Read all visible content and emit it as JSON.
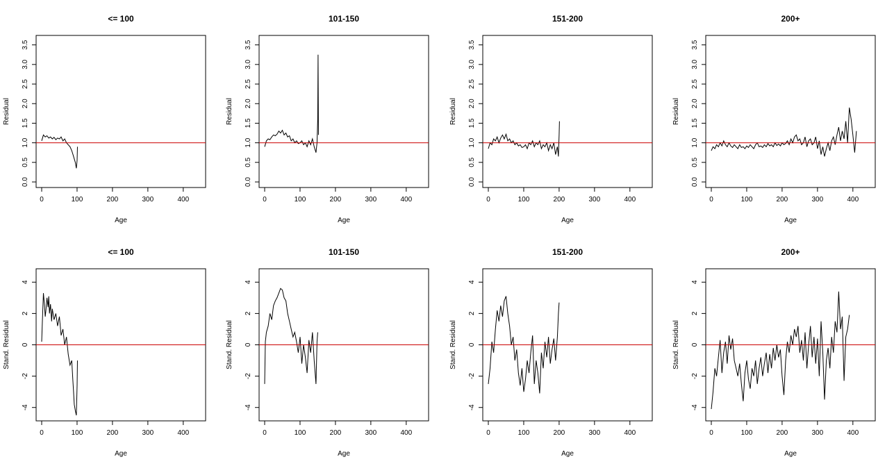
{
  "figure": {
    "reference_line_color": "#cc0000",
    "series_color": "#000000"
  },
  "chart_data": [
    {
      "type": "line",
      "title": "<= 100",
      "xlabel": "Age",
      "ylabel": "Residual",
      "xlim": [
        0,
        420
      ],
      "ylim": [
        0,
        3.6
      ],
      "xticks": [
        "0",
        "100",
        "200",
        "300",
        "400"
      ],
      "yticks": [
        "0.0",
        "0.5",
        "1.0",
        "1.5",
        "2.0",
        "2.5",
        "3.0",
        "3.5"
      ],
      "reference_line": 1,
      "series": [
        {
          "x": [
            0,
            5,
            10,
            15,
            20,
            25,
            30,
            35,
            40,
            45,
            50,
            55,
            60,
            65,
            70,
            75,
            80,
            85,
            90,
            95,
            98,
            100,
            101
          ],
          "y": [
            1.05,
            1.2,
            1.15,
            1.18,
            1.12,
            1.15,
            1.1,
            1.14,
            1.08,
            1.12,
            1.1,
            1.15,
            1.05,
            1.1,
            1.0,
            0.95,
            0.9,
            0.8,
            0.65,
            0.5,
            0.35,
            0.55,
            0.9
          ]
        }
      ]
    },
    {
      "type": "line",
      "title": "101-150",
      "xlabel": "Age",
      "ylabel": "Residual",
      "xlim": [
        0,
        420
      ],
      "ylim": [
        0,
        3.6
      ],
      "xticks": [
        "0",
        "100",
        "200",
        "300",
        "400"
      ],
      "yticks": [
        "0.0",
        "0.5",
        "1.0",
        "1.5",
        "2.0",
        "2.5",
        "3.0",
        "3.5"
      ],
      "reference_line": 1,
      "series": [
        {
          "x": [
            0,
            5,
            10,
            15,
            20,
            25,
            30,
            35,
            40,
            45,
            50,
            55,
            60,
            65,
            70,
            75,
            80,
            85,
            90,
            95,
            100,
            105,
            110,
            115,
            120,
            125,
            130,
            135,
            140,
            145,
            148,
            150,
            151,
            152
          ],
          "y": [
            0.9,
            1.05,
            1.1,
            1.08,
            1.15,
            1.2,
            1.18,
            1.22,
            1.3,
            1.25,
            1.32,
            1.2,
            1.25,
            1.15,
            1.18,
            1.05,
            1.1,
            1.0,
            1.05,
            0.98,
            1.0,
            1.05,
            0.95,
            1.0,
            0.9,
            1.05,
            0.95,
            1.1,
            0.9,
            0.75,
            1.0,
            1.6,
            3.25,
            1.2
          ]
        }
      ]
    },
    {
      "type": "line",
      "title": "151-200",
      "xlabel": "Age",
      "ylabel": "Residual",
      "xlim": [
        0,
        420
      ],
      "ylim": [
        0,
        3.6
      ],
      "xticks": [
        "0",
        "100",
        "200",
        "300",
        "400"
      ],
      "yticks": [
        "0.0",
        "0.5",
        "1.0",
        "1.5",
        "2.0",
        "2.5",
        "3.0",
        "3.5"
      ],
      "reference_line": 1,
      "series": [
        {
          "x": [
            0,
            5,
            10,
            15,
            20,
            25,
            30,
            35,
            40,
            45,
            50,
            55,
            60,
            65,
            70,
            75,
            80,
            85,
            90,
            95,
            100,
            105,
            110,
            115,
            120,
            125,
            130,
            135,
            140,
            145,
            150,
            155,
            160,
            165,
            170,
            175,
            180,
            185,
            190,
            195,
            198,
            200,
            201
          ],
          "y": [
            0.85,
            1.0,
            0.95,
            1.1,
            1.05,
            1.15,
            1.0,
            1.12,
            1.2,
            1.1,
            1.22,
            1.05,
            1.1,
            1.0,
            1.05,
            0.95,
            1.0,
            0.92,
            0.95,
            0.88,
            0.9,
            0.95,
            0.85,
            1.0,
            0.95,
            1.05,
            0.9,
            1.0,
            0.95,
            1.05,
            0.85,
            0.95,
            0.9,
            1.0,
            0.8,
            0.95,
            0.85,
            1.0,
            0.7,
            0.9,
            0.65,
            1.2,
            1.55
          ]
        }
      ]
    },
    {
      "type": "line",
      "title": "200+",
      "xlabel": "Age",
      "ylabel": "Residual",
      "xlim": [
        0,
        420
      ],
      "ylim": [
        0,
        3.6
      ],
      "xticks": [
        "0",
        "100",
        "200",
        "300",
        "400"
      ],
      "yticks": [
        "0.0",
        "0.5",
        "1.0",
        "1.5",
        "2.0",
        "2.5",
        "3.0",
        "3.5"
      ],
      "reference_line": 1,
      "series": [
        {
          "x": [
            0,
            5,
            10,
            15,
            20,
            25,
            30,
            35,
            40,
            45,
            50,
            55,
            60,
            65,
            70,
            75,
            80,
            85,
            90,
            95,
            100,
            105,
            110,
            115,
            120,
            125,
            130,
            135,
            140,
            145,
            150,
            155,
            160,
            165,
            170,
            175,
            180,
            185,
            190,
            195,
            200,
            205,
            210,
            215,
            220,
            225,
            230,
            235,
            240,
            245,
            250,
            255,
            260,
            265,
            270,
            275,
            280,
            285,
            290,
            295,
            300,
            305,
            310,
            315,
            320,
            325,
            330,
            335,
            340,
            345,
            350,
            355,
            360,
            365,
            370,
            375,
            380,
            385,
            390,
            395,
            400,
            405,
            410
          ],
          "y": [
            0.8,
            0.9,
            0.85,
            0.95,
            0.9,
            1.0,
            0.92,
            1.05,
            0.95,
            0.9,
            1.0,
            0.92,
            0.88,
            0.95,
            0.9,
            0.85,
            0.95,
            0.88,
            0.9,
            0.85,
            0.92,
            0.88,
            0.95,
            0.9,
            0.85,
            0.95,
            1.0,
            0.9,
            0.92,
            0.88,
            0.95,
            0.9,
            0.98,
            0.92,
            0.95,
            0.9,
            1.0,
            0.93,
            0.97,
            0.92,
            1.0,
            0.95,
            0.98,
            1.05,
            0.95,
            1.1,
            1.0,
            1.15,
            1.2,
            1.05,
            1.1,
            0.95,
            1.0,
            1.15,
            0.9,
            1.05,
            1.1,
            0.95,
            1.0,
            1.15,
            0.85,
            1.05,
            0.7,
            0.9,
            0.65,
            0.85,
            1.0,
            0.8,
            1.05,
            1.15,
            0.95,
            1.2,
            1.4,
            1.05,
            1.3,
            1.1,
            1.55,
            1.0,
            1.9,
            1.6,
            1.2,
            0.75,
            1.3
          ]
        }
      ]
    },
    {
      "type": "line",
      "title": "<= 100",
      "xlabel": "Age",
      "ylabel": "Stand. Residual",
      "xlim": [
        0,
        420
      ],
      "ylim": [
        -4.5,
        4.5
      ],
      "xticks": [
        "0",
        "100",
        "200",
        "300",
        "400"
      ],
      "yticks": [
        "-4",
        "-2",
        "0",
        "2",
        "4"
      ],
      "reference_line": 0,
      "series": [
        {
          "x": [
            0,
            2,
            5,
            8,
            10,
            12,
            15,
            18,
            20,
            22,
            25,
            28,
            30,
            35,
            40,
            45,
            50,
            55,
            60,
            65,
            70,
            75,
            80,
            85,
            88,
            90,
            92,
            95,
            98,
            100,
            101
          ],
          "y": [
            0.2,
            1.5,
            3.3,
            2.5,
            1.8,
            2.2,
            3.0,
            2.4,
            3.1,
            2.0,
            2.6,
            1.5,
            2.3,
            1.6,
            2.0,
            1.2,
            1.8,
            0.6,
            1.0,
            0.0,
            0.5,
            -0.6,
            -1.3,
            -1.0,
            -2.2,
            -3.0,
            -3.8,
            -4.2,
            -4.5,
            -2.6,
            -1.0
          ]
        }
      ]
    },
    {
      "type": "line",
      "title": "101-150",
      "xlabel": "Age",
      "ylabel": "Stand. Residual",
      "xlim": [
        0,
        420
      ],
      "ylim": [
        -4.5,
        4.5
      ],
      "xticks": [
        "0",
        "100",
        "200",
        "300",
        "400"
      ],
      "yticks": [
        "-4",
        "-2",
        "0",
        "2",
        "4"
      ],
      "reference_line": 0,
      "series": [
        {
          "x": [
            0,
            2,
            5,
            10,
            15,
            20,
            25,
            30,
            35,
            40,
            45,
            50,
            55,
            60,
            65,
            70,
            75,
            80,
            85,
            90,
            95,
            100,
            105,
            110,
            115,
            120,
            125,
            130,
            135,
            140,
            145,
            148,
            150
          ],
          "y": [
            -2.5,
            0.2,
            0.8,
            1.2,
            2.0,
            1.6,
            2.5,
            2.8,
            3.0,
            3.3,
            3.6,
            3.5,
            3.0,
            2.8,
            2.0,
            1.5,
            1.0,
            0.5,
            0.8,
            0.2,
            -0.5,
            0.5,
            -1.2,
            0.0,
            -0.8,
            -1.8,
            0.3,
            -0.5,
            0.8,
            -1.0,
            -2.5,
            0.2,
            0.8
          ]
        }
      ]
    },
    {
      "type": "line",
      "title": "151-200",
      "xlabel": "Age",
      "ylabel": "Stand. Residual",
      "xlim": [
        0,
        420
      ],
      "ylim": [
        -4.5,
        4.5
      ],
      "xticks": [
        "0",
        "100",
        "200",
        "300",
        "400"
      ],
      "yticks": [
        "-4",
        "-2",
        "0",
        "2",
        "4"
      ],
      "reference_line": 0,
      "series": [
        {
          "x": [
            0,
            5,
            10,
            15,
            20,
            25,
            30,
            35,
            40,
            45,
            50,
            55,
            60,
            65,
            70,
            75,
            80,
            85,
            90,
            95,
            100,
            105,
            110,
            115,
            120,
            125,
            130,
            135,
            140,
            145,
            150,
            155,
            160,
            165,
            170,
            175,
            180,
            185,
            190,
            195,
            198,
            200
          ],
          "y": [
            -2.5,
            -1.5,
            0.2,
            -0.5,
            1.0,
            2.2,
            1.5,
            2.5,
            1.8,
            2.8,
            3.1,
            2.0,
            1.2,
            0.0,
            0.5,
            -1.0,
            -0.3,
            -1.8,
            -2.6,
            -1.5,
            -3.0,
            -2.2,
            -1.0,
            -1.8,
            -0.5,
            0.6,
            -2.5,
            -1.0,
            -1.8,
            -3.1,
            -0.5,
            -1.5,
            0.2,
            -0.8,
            0.5,
            -1.2,
            -0.3,
            0.4,
            -1.0,
            0.5,
            2.0,
            2.7
          ]
        }
      ]
    },
    {
      "type": "line",
      "title": "200+",
      "xlabel": "Age",
      "ylabel": "Stand. Residual",
      "xlim": [
        0,
        420
      ],
      "ylim": [
        -4.5,
        4.5
      ],
      "xticks": [
        "0",
        "100",
        "200",
        "300",
        "400"
      ],
      "yticks": [
        "-4",
        "-2",
        "0",
        "2",
        "4"
      ],
      "reference_line": 0,
      "series": [
        {
          "x": [
            0,
            5,
            10,
            15,
            20,
            25,
            30,
            35,
            40,
            45,
            50,
            55,
            60,
            65,
            70,
            75,
            80,
            85,
            90,
            95,
            100,
            105,
            110,
            115,
            120,
            125,
            130,
            135,
            140,
            145,
            150,
            155,
            160,
            165,
            170,
            175,
            180,
            185,
            190,
            195,
            200,
            205,
            210,
            215,
            220,
            225,
            230,
            235,
            240,
            245,
            250,
            255,
            260,
            265,
            270,
            275,
            280,
            285,
            290,
            295,
            300,
            305,
            310,
            315,
            320,
            325,
            330,
            335,
            340,
            345,
            350,
            355,
            360,
            365,
            370,
            375,
            380,
            385,
            390
          ],
          "y": [
            -4.1,
            -3.0,
            -1.5,
            -2.0,
            -0.8,
            0.3,
            -1.8,
            -0.5,
            0.2,
            -1.2,
            0.6,
            -0.3,
            0.4,
            -1.0,
            -1.5,
            -2.0,
            -1.2,
            -2.5,
            -3.6,
            -1.8,
            -1.0,
            -2.2,
            -2.8,
            -1.5,
            -2.0,
            -1.0,
            -2.5,
            -1.5,
            -0.8,
            -2.0,
            -1.2,
            -0.5,
            -1.8,
            -0.6,
            -1.5,
            -0.2,
            -1.0,
            0.0,
            -0.8,
            -0.3,
            -2.0,
            -3.2,
            -1.0,
            0.2,
            -0.5,
            0.6,
            0.0,
            1.0,
            0.5,
            1.2,
            -0.5,
            0.3,
            -1.0,
            0.8,
            -1.5,
            0.0,
            1.2,
            -0.8,
            0.5,
            -1.2,
            0.4,
            -2.0,
            1.5,
            -0.5,
            -3.5,
            -1.0,
            -0.2,
            -1.5,
            0.5,
            -0.5,
            1.5,
            0.8,
            3.4,
            1.0,
            1.8,
            -2.3,
            0.5,
            1.0,
            1.9
          ]
        }
      ]
    }
  ]
}
